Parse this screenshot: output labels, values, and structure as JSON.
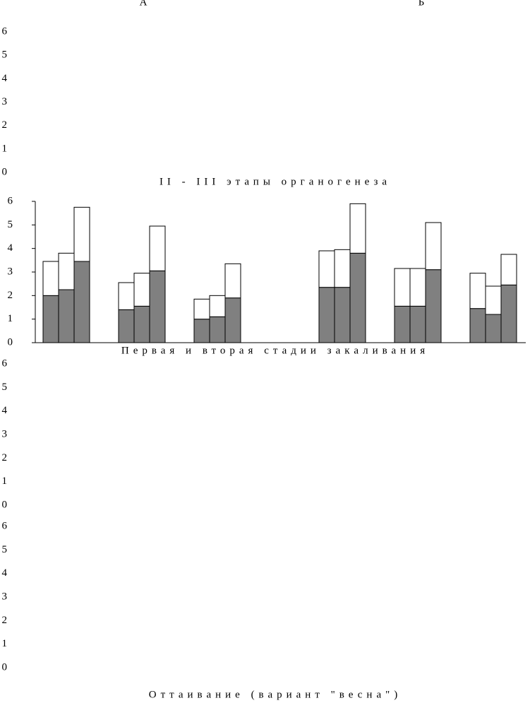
{
  "chart_data": [
    {
      "type": "bar",
      "column_titles": [
        "А",
        "Б"
      ],
      "title": "II - III этапы органогенеза",
      "ylim": [
        0,
        6
      ],
      "yticks": [
        0,
        1,
        2,
        3,
        4,
        5,
        6
      ]
    },
    {
      "type": "stacked_bar",
      "title": "Первая и вторая стадии закаливания",
      "ylim": [
        0,
        6
      ],
      "yticks": [
        0,
        1,
        2,
        3,
        4,
        5,
        6
      ],
      "series": [
        {
          "color": "#808080",
          "values": [
            2.0,
            2.25,
            3.45,
            1.4,
            1.55,
            3.05,
            1.0,
            1.1,
            1.9,
            2.35,
            2.35,
            3.8,
            1.55,
            1.55,
            3.1,
            1.45,
            1.2,
            2.45
          ]
        },
        {
          "color": "#ffffff",
          "values": [
            1.45,
            1.55,
            2.3,
            1.15,
            1.4,
            1.9,
            0.85,
            0.9,
            1.45,
            1.55,
            1.6,
            2.1,
            1.6,
            1.6,
            2.0,
            1.5,
            1.2,
            1.3
          ]
        }
      ]
    },
    {
      "type": "bar",
      "ylim": [
        0,
        6
      ],
      "yticks": [
        0,
        1,
        2,
        3,
        4,
        5,
        6
      ]
    },
    {
      "type": "bar",
      "title": "Оттаивание (вариант \"весна\")",
      "ylim": [
        0,
        6
      ],
      "yticks": [
        0,
        1,
        2,
        3,
        4,
        5,
        6
      ]
    }
  ]
}
